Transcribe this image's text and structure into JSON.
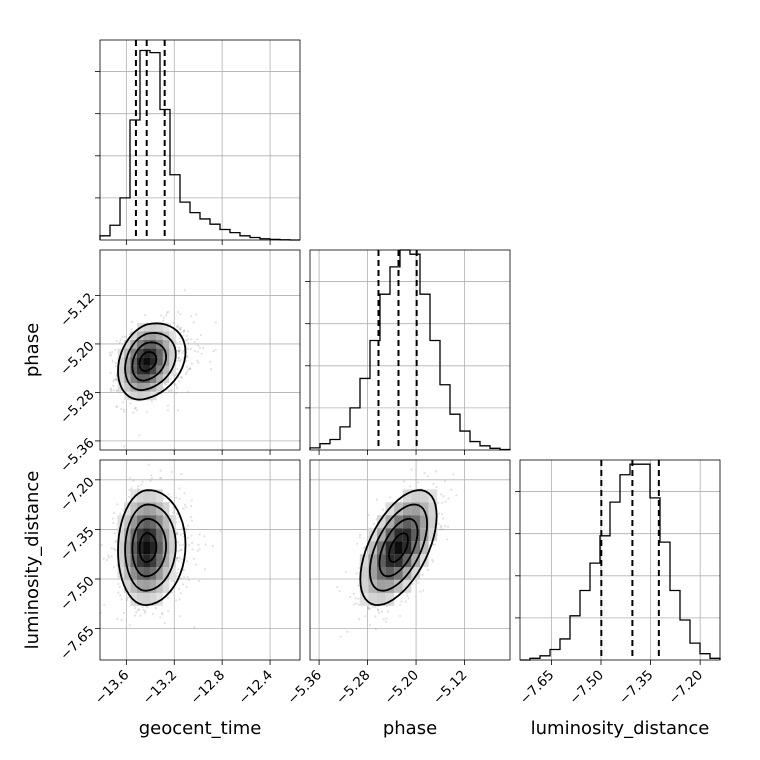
{
  "chart_data": {
    "type": "corner",
    "parameters": [
      "geocent_time",
      "phase",
      "luminosity_distance"
    ],
    "ranges": {
      "geocent_time": [
        -13.82,
        -12.15
      ],
      "phase": [
        -5.375,
        -5.045
      ],
      "luminosity_distance": [
        -7.745,
        -7.14
      ]
    },
    "ticks": {
      "geocent_time": [
        -13.6,
        -13.2,
        -12.8,
        -12.4
      ],
      "phase": [
        -5.36,
        -5.28,
        -5.2,
        -5.12
      ],
      "luminosity_distance": [
        -7.65,
        -7.5,
        -7.35,
        -7.2
      ]
    },
    "tick_labels": {
      "geocent_time": [
        "−13.6",
        "−13.2",
        "−12.8",
        "−12.4"
      ],
      "phase": [
        "−5.36",
        "−5.28",
        "−5.20",
        "−5.12"
      ],
      "luminosity_distance": [
        "−7.65",
        "−7.50",
        "−7.35",
        "−7.20"
      ]
    },
    "histograms": {
      "geocent_time": [
        0.02,
        0.07,
        0.2,
        0.57,
        0.9,
        0.89,
        0.62,
        0.31,
        0.18,
        0.13,
        0.1,
        0.075,
        0.05,
        0.035,
        0.02,
        0.012,
        0.006,
        0.003,
        0.001,
        0.0
      ],
      "phase": [
        0.01,
        0.03,
        0.05,
        0.11,
        0.2,
        0.34,
        0.52,
        0.74,
        0.87,
        0.95,
        0.93,
        0.74,
        0.52,
        0.31,
        0.17,
        0.09,
        0.04,
        0.02,
        0.008,
        0.002
      ],
      "luminosity_distance": [
        0.0,
        0.008,
        0.02,
        0.05,
        0.1,
        0.21,
        0.33,
        0.46,
        0.59,
        0.75,
        0.88,
        0.93,
        0.93,
        0.77,
        0.56,
        0.33,
        0.19,
        0.08,
        0.03,
        0.008
      ]
    },
    "quantiles": {
      "geocent_time": [
        -13.52,
        -13.43,
        -13.28
      ],
      "phase": [
        -5.262,
        -5.229,
        -5.199
      ],
      "luminosity_distance": [
        -7.499,
        -7.405,
        -7.325
      ]
    },
    "correlations": {
      "phase|geocent_time": 0.25,
      "luminosity_distance|geocent_time": 0.05,
      "luminosity_distance|phase": 0.55
    },
    "grid": true,
    "contour_levels": [
      0.5,
      1.0,
      1.5,
      2.0
    ]
  }
}
